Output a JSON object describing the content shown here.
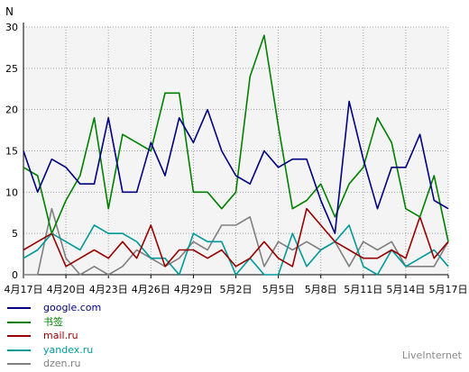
{
  "chart_data": {
    "type": "line",
    "ylabel": "N",
    "ylim": [
      0,
      30
    ],
    "yticks": [
      0,
      5,
      10,
      15,
      20,
      25,
      30
    ],
    "grid": true,
    "legend_position": "bottom-left",
    "xticks": [
      "4月17日",
      "4月20日",
      "4月23日",
      "4月26日",
      "4月29日",
      "5月2日",
      "5月5日",
      "5月8日",
      "5月11日",
      "5月14日",
      "5月17日"
    ],
    "series": [
      {
        "name": "google.com",
        "color": "#000080",
        "values": [
          15,
          10,
          14,
          13,
          11,
          11,
          19,
          10,
          10,
          16,
          12,
          19,
          16,
          20,
          15,
          12,
          11,
          15,
          13,
          14,
          14,
          9,
          5,
          21,
          14,
          8,
          13,
          13,
          17,
          9,
          8
        ]
      },
      {
        "name": "书签",
        "color": "#008000",
        "values": [
          13,
          12,
          5,
          9,
          12,
          19,
          8,
          17,
          16,
          15,
          22,
          22,
          10,
          10,
          8,
          10,
          24,
          29,
          18,
          8,
          9,
          11,
          7,
          11,
          13,
          19,
          16,
          8,
          7,
          12,
          4
        ]
      },
      {
        "name": "mail.ru",
        "color": "#990000",
        "values": [
          3,
          4,
          5,
          1,
          2,
          3,
          2,
          4,
          2,
          6,
          1,
          3,
          3,
          2,
          3,
          1,
          2,
          4,
          2,
          1,
          8,
          6,
          4,
          3,
          2,
          2,
          3,
          2,
          7,
          2,
          4
        ]
      },
      {
        "name": "yandex.ru",
        "color": "#009999",
        "values": [
          2,
          3,
          5,
          4,
          3,
          6,
          5,
          5,
          4,
          2,
          2,
          0,
          5,
          4,
          4,
          0,
          2,
          0,
          0,
          5,
          1,
          3,
          4,
          6,
          1,
          0,
          3,
          1,
          2,
          3,
          1
        ]
      },
      {
        "name": "dzen.ru",
        "color": "#808080",
        "values": [
          0,
          0,
          8,
          2,
          0,
          1,
          0,
          1,
          3,
          2,
          1,
          2,
          4,
          3,
          6,
          6,
          7,
          1,
          4,
          3,
          4,
          3,
          4,
          1,
          4,
          3,
          4,
          1,
          1,
          1,
          4
        ]
      }
    ]
  },
  "watermark": "LiveInternet"
}
